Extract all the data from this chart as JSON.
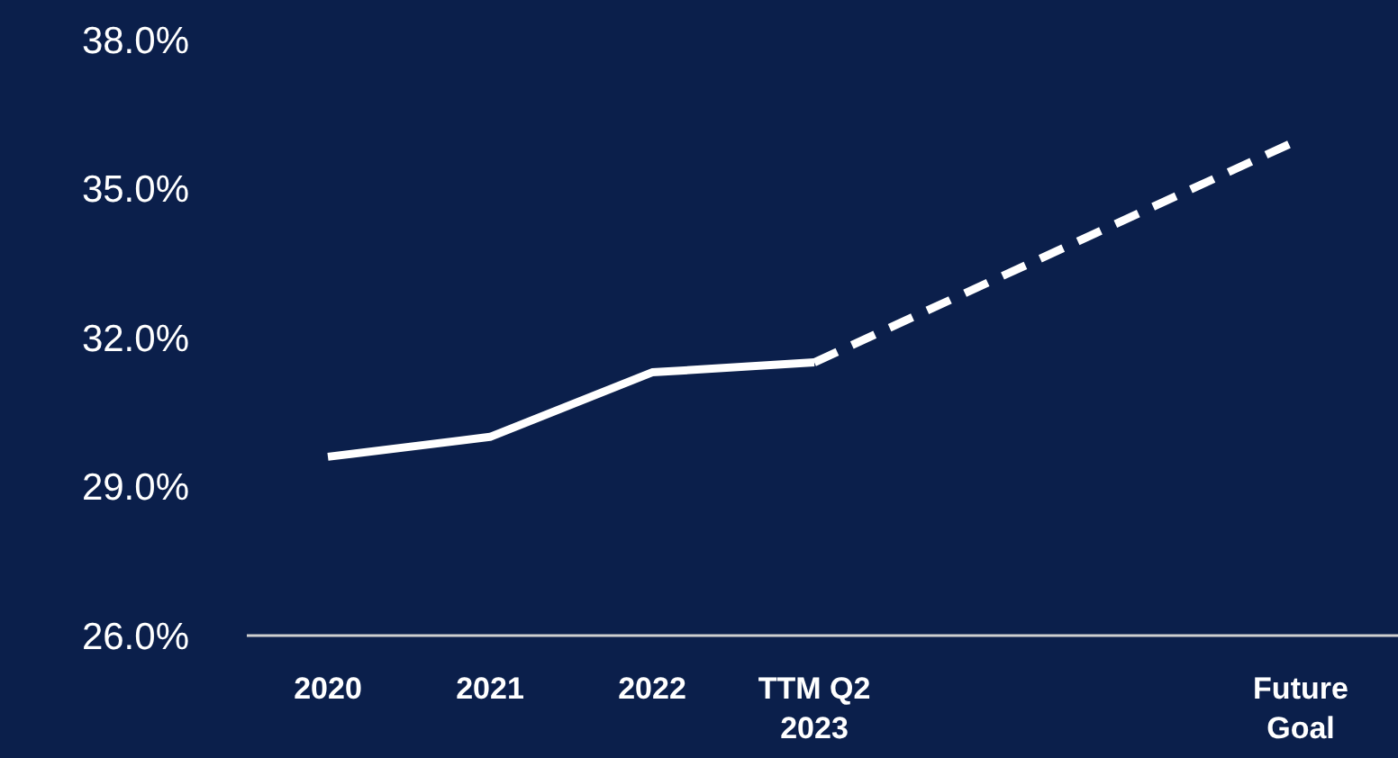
{
  "chart_data": {
    "type": "line",
    "categories": [
      "2020",
      "2021",
      "2022",
      "TTM Q2\n2023",
      null,
      null,
      "Future\nGoal"
    ],
    "series": [
      {
        "color": "#ffffff",
        "line_style": "solid",
        "values": [
          29.6,
          30.0,
          31.3,
          31.5,
          null,
          null,
          null
        ]
      },
      {
        "color": "#ffffff",
        "line_style": "dashed",
        "values": [
          null,
          null,
          null,
          31.5,
          null,
          null,
          36.0
        ]
      }
    ],
    "ylim": [
      26,
      38
    ],
    "yticks": [
      {
        "value": 26,
        "label": "26.0%"
      },
      {
        "value": 29,
        "label": "29.0%"
      },
      {
        "value": 32,
        "label": "32.0%"
      },
      {
        "value": 35,
        "label": "35.0%"
      },
      {
        "value": 38,
        "label": "38.0%"
      }
    ],
    "grid": false,
    "marker": "none"
  }
}
